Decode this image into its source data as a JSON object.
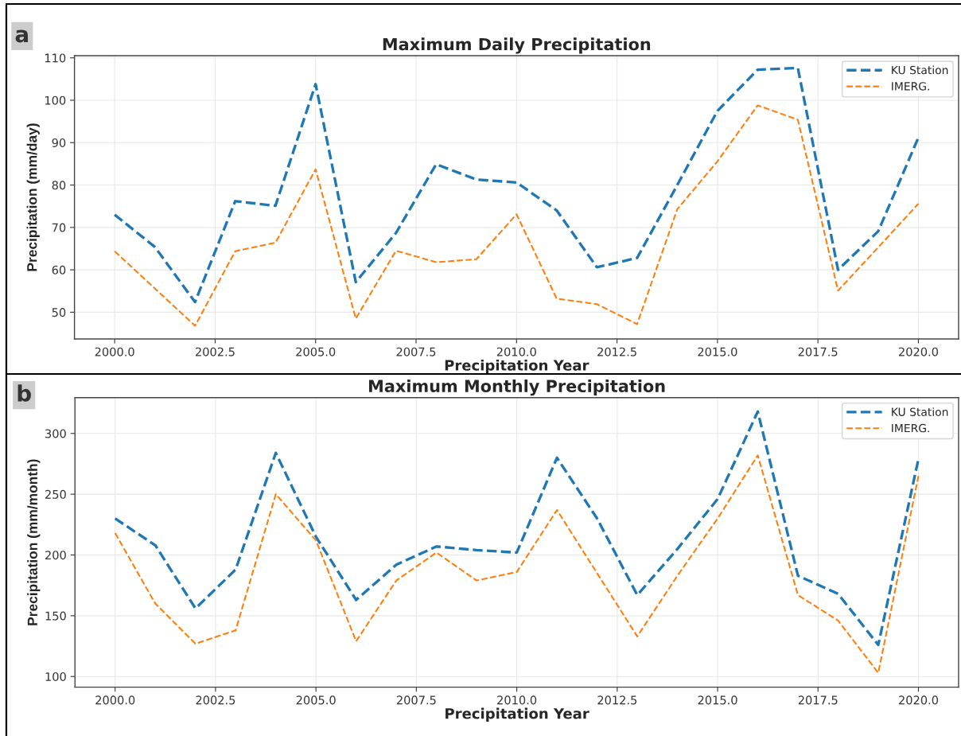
{
  "chart_data": [
    {
      "type": "line",
      "title": "Maximum Daily Precipitation",
      "xlabel": "Precipitation Year",
      "ylabel": "Precipitation (mm/day)",
      "annotations": [
        "a"
      ],
      "x": [
        2000,
        2001,
        2002,
        2003,
        2004,
        2005,
        2006,
        2007,
        2008,
        2009,
        2010,
        2011,
        2012,
        2013,
        2014,
        2015,
        2016,
        2017,
        2018,
        2019,
        2020
      ],
      "series": [
        {
          "name": "KU Station",
          "color": "#1f77b4",
          "values": [
            73.0,
            65.4,
            52.4,
            76.2,
            75.1,
            103.8,
            57.1,
            68.7,
            84.9,
            81.3,
            80.6,
            74.0,
            60.6,
            62.8,
            80.0,
            97.5,
            107.2,
            107.6,
            60.0,
            69.1,
            91.2
          ]
        },
        {
          "name": "IMERG.",
          "color": "#ff7f0e",
          "values": [
            64.4,
            55.6,
            46.8,
            64.4,
            66.4,
            83.7,
            48.5,
            64.5,
            61.8,
            62.5,
            73.1,
            53.2,
            51.9,
            47.2,
            74.3,
            85.6,
            98.8,
            95.4,
            55.1,
            65.3,
            75.6
          ]
        }
      ],
      "xlim": [
        1999,
        2021
      ],
      "ylim": [
        43.7,
        110.5
      ],
      "xticks": [
        {
          "value": 2000,
          "label": "2000.0"
        },
        {
          "value": 2002.5,
          "label": "2002.5"
        },
        {
          "value": 2005,
          "label": "2005.0"
        },
        {
          "value": 2007.5,
          "label": "2007.5"
        },
        {
          "value": 2010,
          "label": "2010.0"
        },
        {
          "value": 2012.5,
          "label": "2012.5"
        },
        {
          "value": 2015,
          "label": "2015.0"
        },
        {
          "value": 2017.5,
          "label": "2017.5"
        },
        {
          "value": 2020,
          "label": "2020.0"
        }
      ],
      "yticks": [
        50,
        60,
        70,
        80,
        90,
        100,
        110
      ],
      "grid": true,
      "legend": "top right",
      "line_style": "dashed"
    },
    {
      "type": "line",
      "title": "Maximum Monthly Precipitation",
      "xlabel": "Precipitation Year",
      "ylabel": "Precipitation (mm/month)",
      "annotations": [
        "b"
      ],
      "x": [
        2000,
        2001,
        2002,
        2003,
        2004,
        2005,
        2006,
        2007,
        2008,
        2009,
        2010,
        2011,
        2012,
        2013,
        2014,
        2015,
        2016,
        2017,
        2018,
        2019,
        2020
      ],
      "series": [
        {
          "name": "KU Station",
          "color": "#1f77b4",
          "values": [
            230,
            208,
            156,
            188,
            284,
            215,
            163,
            192,
            207,
            204,
            202,
            280,
            230,
            167,
            205,
            246,
            318,
            183,
            168,
            126,
            279
          ]
        },
        {
          "name": "IMERG.",
          "color": "#ff7f0e",
          "values": [
            218,
            160,
            127,
            138,
            250,
            212,
            129,
            179,
            202,
            179,
            186,
            237,
            185,
            133,
            183,
            230,
            282,
            167,
            146,
            103,
            265
          ]
        }
      ],
      "xlim": [
        1999,
        2021
      ],
      "ylim": [
        91.2,
        329.5
      ],
      "xticks": [
        {
          "value": 2000,
          "label": "2000.0"
        },
        {
          "value": 2002.5,
          "label": "2002.5"
        },
        {
          "value": 2005,
          "label": "2005.0"
        },
        {
          "value": 2007.5,
          "label": "2007.5"
        },
        {
          "value": 2010,
          "label": "2010.0"
        },
        {
          "value": 2012.5,
          "label": "2012.5"
        },
        {
          "value": 2015,
          "label": "2015.0"
        },
        {
          "value": 2017.5,
          "label": "2017.5"
        },
        {
          "value": 2020,
          "label": "2020.0"
        }
      ],
      "yticks": [
        100,
        150,
        200,
        250,
        300
      ],
      "grid": true,
      "legend": "top right",
      "line_style": "dashed"
    }
  ]
}
